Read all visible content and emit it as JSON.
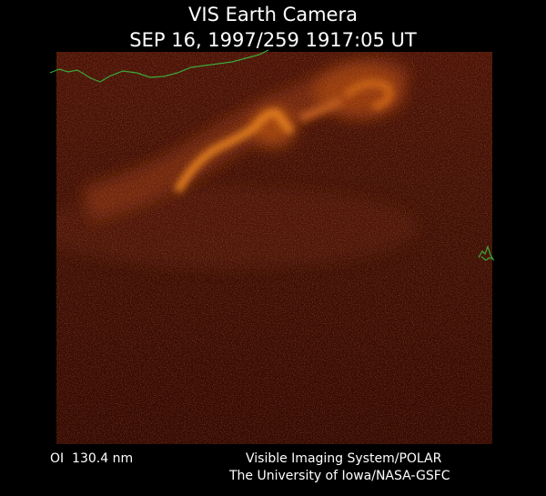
{
  "header": {
    "title": "VIS Earth Camera",
    "timestamp": "SEP 16, 1997/259 1917:05 UT"
  },
  "footer": {
    "filter": "OI  130.4 nm",
    "system": "Visible Imaging System/POLAR",
    "institution": "The University of Iowa/NASA-GSFC"
  }
}
